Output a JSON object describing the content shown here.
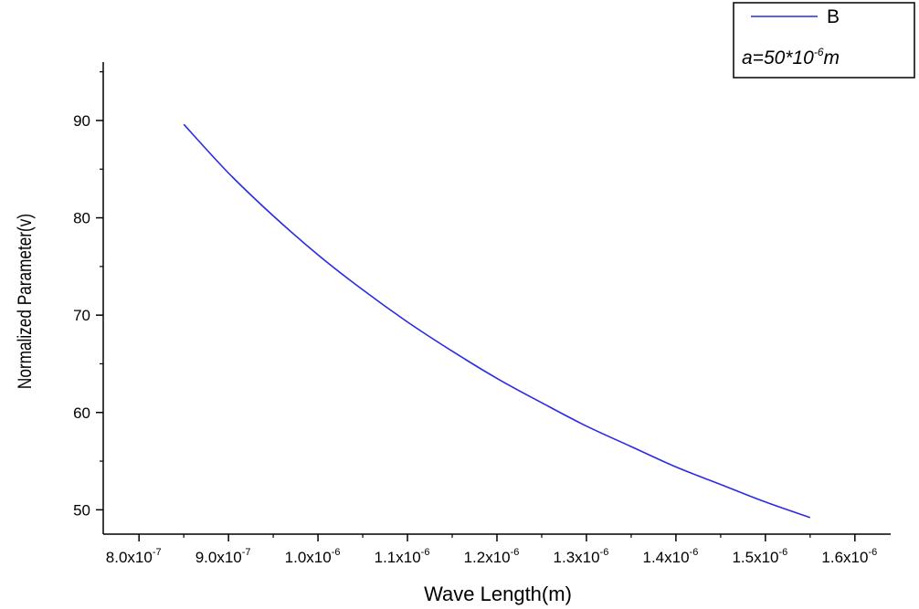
{
  "chart_data": {
    "type": "line",
    "xlabel": "Wave Length(m)",
    "ylabel": "Normalized Parameter(v)",
    "xlim": [
      7.6e-07,
      1.64e-06
    ],
    "ylim": [
      47.5,
      96
    ],
    "x_ticks": [
      8e-07,
      9e-07,
      1e-06,
      1.1e-06,
      1.2e-06,
      1.3e-06,
      1.4e-06,
      1.5e-06,
      1.6e-06
    ],
    "x_tick_labels": [
      {
        "mantissa": "8.0x10",
        "exp": "-7"
      },
      {
        "mantissa": "9.0x10",
        "exp": "-7"
      },
      {
        "mantissa": "1.0x10",
        "exp": "-6"
      },
      {
        "mantissa": "1.1x10",
        "exp": "-6"
      },
      {
        "mantissa": "1.2x10",
        "exp": "-6"
      },
      {
        "mantissa": "1.3x10",
        "exp": "-6"
      },
      {
        "mantissa": "1.4x10",
        "exp": "-6"
      },
      {
        "mantissa": "1.5x10",
        "exp": "-6"
      },
      {
        "mantissa": "1.6x10",
        "exp": "-6"
      }
    ],
    "y_ticks": [
      50,
      60,
      70,
      80,
      90
    ],
    "y_minor_ticks": [
      55,
      65,
      75,
      85,
      95
    ],
    "grid": false,
    "legend_position": "top-right",
    "series": [
      {
        "name": "B",
        "color": "#2a2ae6",
        "x": [
          8.5e-07,
          9e-07,
          9.5e-07,
          1e-06,
          1.05e-06,
          1.1e-06,
          1.15e-06,
          1.2e-06,
          1.25e-06,
          1.3e-06,
          1.35e-06,
          1.4e-06,
          1.45e-06,
          1.5e-06,
          1.55e-06
        ],
        "y": [
          89.6,
          84.6,
          80.2,
          76.2,
          72.6,
          69.3,
          66.3,
          63.5,
          61.0,
          58.6,
          56.5,
          54.4,
          52.6,
          50.8,
          49.2
        ]
      }
    ],
    "annotation": {
      "prefix": "a=50*10",
      "exp": "-6",
      "suffix": "m"
    }
  }
}
